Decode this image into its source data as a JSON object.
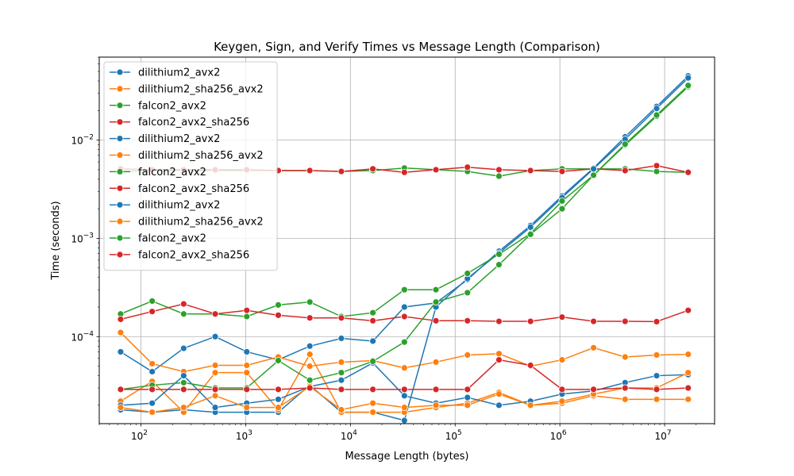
{
  "chart_data": {
    "type": "line",
    "title": "Keygen, Sign, and Verify Times vs Message Length (Comparison)",
    "xlabel": "Message Length (bytes)",
    "ylabel": "Time (seconds)",
    "xscale": "log",
    "yscale": "log",
    "xlim": [
      40,
      30000000
    ],
    "ylim": [
      1.3e-05,
      0.07
    ],
    "grid": true,
    "legend_position": "top-left",
    "x": [
      64,
      128,
      256,
      512,
      1024,
      2048,
      4096,
      8192,
      16384,
      32768,
      65536,
      131072,
      262144,
      524288,
      1048576,
      2097152,
      4194304,
      8388608,
      16777216
    ],
    "x_ticks": [
      {
        "value": 100,
        "label": "10",
        "exp": "2"
      },
      {
        "value": 1000,
        "label": "10",
        "exp": "3"
      },
      {
        "value": 10000,
        "label": "10",
        "exp": "4"
      },
      {
        "value": 100000,
        "label": "10",
        "exp": "5"
      },
      {
        "value": 1000000,
        "label": "10",
        "exp": "6"
      },
      {
        "value": 10000000,
        "label": "10",
        "exp": "7"
      }
    ],
    "y_ticks": [
      {
        "value": 0.0001,
        "label": "10",
        "exp": "−4"
      },
      {
        "value": 0.001,
        "label": "10",
        "exp": "−3"
      },
      {
        "value": 0.01,
        "label": "10",
        "exp": "−2"
      }
    ],
    "series": [
      {
        "name": "dilithium2_avx2",
        "color": "#1f77b4",
        "values": [
          7e-05,
          4.4e-05,
          7.6e-05,
          0.0001,
          7e-05,
          5.8e-05,
          8e-05,
          9.6e-05,
          9e-05,
          0.0002,
          0.00022,
          0.00038,
          0.00074,
          0.00135,
          0.0027,
          0.0052,
          0.0108,
          0.022,
          0.045
        ]
      },
      {
        "name": "dilithium2_sha256_avx2",
        "color": "#ff7f0e",
        "values": [
          0.00011,
          5.3e-05,
          4.4e-05,
          5.1e-05,
          5.1e-05,
          6.2e-05,
          5e-05,
          5.5e-05,
          5.7e-05,
          4.8e-05,
          5.5e-05,
          6.5e-05,
          6.7e-05,
          5e-05,
          5.8e-05,
          7.7e-05,
          6.2e-05,
          6.5e-05,
          6.6e-05
        ]
      },
      {
        "name": "falcon2_avx2",
        "color": "#2ca02c",
        "values": [
          0.0048,
          0.0049,
          0.0049,
          0.0049,
          0.0049,
          0.0049,
          0.0049,
          0.0048,
          0.0049,
          0.0052,
          0.005,
          0.0048,
          0.0043,
          0.0049,
          0.0051,
          0.0051,
          0.0051,
          0.0048,
          0.0047
        ]
      },
      {
        "name": "falcon2_avx2_sha256",
        "color": "#d62728",
        "values": [
          0.0051,
          0.005,
          0.005,
          0.005,
          0.005,
          0.0049,
          0.0049,
          0.0048,
          0.0051,
          0.0047,
          0.005,
          0.0053,
          0.005,
          0.0049,
          0.0048,
          0.0051,
          0.0049,
          0.0055,
          0.0047
        ]
      },
      {
        "name": "dilithium2_avx2",
        "color": "#1f77b4",
        "values": [
          1.8e-05,
          1.7e-05,
          1.8e-05,
          1.7e-05,
          1.7e-05,
          1.7e-05,
          3.2e-05,
          1.7e-05,
          1.7e-05,
          1.4e-05,
          0.0002,
          0.00039,
          0.00071,
          0.0013,
          0.0026,
          0.0051,
          0.0102,
          0.021,
          0.043
        ]
      },
      {
        "name": "dilithium2_sha256_avx2",
        "color": "#ff7f0e",
        "values": [
          2.2e-05,
          3.5e-05,
          1.7e-05,
          4.3e-05,
          4.3e-05,
          1.8e-05,
          6.6e-05,
          1.7e-05,
          1.7e-05,
          1.7e-05,
          1.9e-05,
          2.1e-05,
          2.7e-05,
          2e-05,
          2.1e-05,
          2.5e-05,
          2.3e-05,
          2.3e-05,
          2.3e-05
        ]
      },
      {
        "name": "falcon2_avx2",
        "color": "#2ca02c",
        "values": [
          0.00017,
          0.00023,
          0.00017,
          0.00017,
          0.00016,
          0.00021,
          0.000225,
          0.00016,
          0.000175,
          0.0003,
          0.0003,
          0.00044,
          0.00069,
          0.00112,
          0.0024,
          0.0044,
          0.0089,
          0.0175,
          0.035
        ]
      },
      {
        "name": "falcon2_avx2_sha256",
        "color": "#d62728",
        "values": [
          0.00015,
          0.00018,
          0.000215,
          0.00017,
          0.000185,
          0.000165,
          0.000155,
          0.000155,
          0.000145,
          0.00016,
          0.000145,
          0.000145,
          0.000143,
          0.000143,
          0.000158,
          0.000143,
          0.000143,
          0.000142,
          0.000185
        ]
      },
      {
        "name": "dilithium2_avx2",
        "color": "#1f77b4",
        "values": [
          2e-05,
          2.1e-05,
          4e-05,
          1.9e-05,
          2.1e-05,
          2.3e-05,
          3.1e-05,
          3.6e-05,
          5.4e-05,
          2.5e-05,
          2.1e-05,
          2.4e-05,
          2e-05,
          2.2e-05,
          2.6e-05,
          2.8e-05,
          3.4e-05,
          4e-05,
          4.1e-05
        ]
      },
      {
        "name": "dilithium2_sha256_avx2",
        "color": "#ff7f0e",
        "values": [
          1.9e-05,
          1.7e-05,
          1.9e-05,
          2.5e-05,
          1.9e-05,
          1.9e-05,
          3.1e-05,
          1.8e-05,
          2.1e-05,
          1.9e-05,
          2e-05,
          2e-05,
          2.6e-05,
          2e-05,
          2.2e-05,
          2.6e-05,
          3e-05,
          3e-05,
          4.3e-05
        ]
      },
      {
        "name": "falcon2_avx2",
        "color": "#2ca02c",
        "values": [
          2.9e-05,
          3.2e-05,
          3.4e-05,
          3e-05,
          3e-05,
          5.7e-05,
          3.6e-05,
          4.3e-05,
          5.6e-05,
          8.8e-05,
          0.000225,
          0.00028,
          0.00054,
          0.0011,
          0.002,
          0.0044,
          0.0091,
          0.018,
          0.036
        ]
      },
      {
        "name": "falcon2_avx2_sha256",
        "color": "#d62728",
        "values": [
          2.9e-05,
          2.9e-05,
          2.9e-05,
          2.9e-05,
          2.9e-05,
          2.9e-05,
          3e-05,
          2.9e-05,
          2.9e-05,
          2.9e-05,
          2.9e-05,
          2.9e-05,
          5.8e-05,
          5.1e-05,
          2.9e-05,
          2.9e-05,
          3e-05,
          2.9e-05,
          3e-05
        ]
      }
    ]
  }
}
